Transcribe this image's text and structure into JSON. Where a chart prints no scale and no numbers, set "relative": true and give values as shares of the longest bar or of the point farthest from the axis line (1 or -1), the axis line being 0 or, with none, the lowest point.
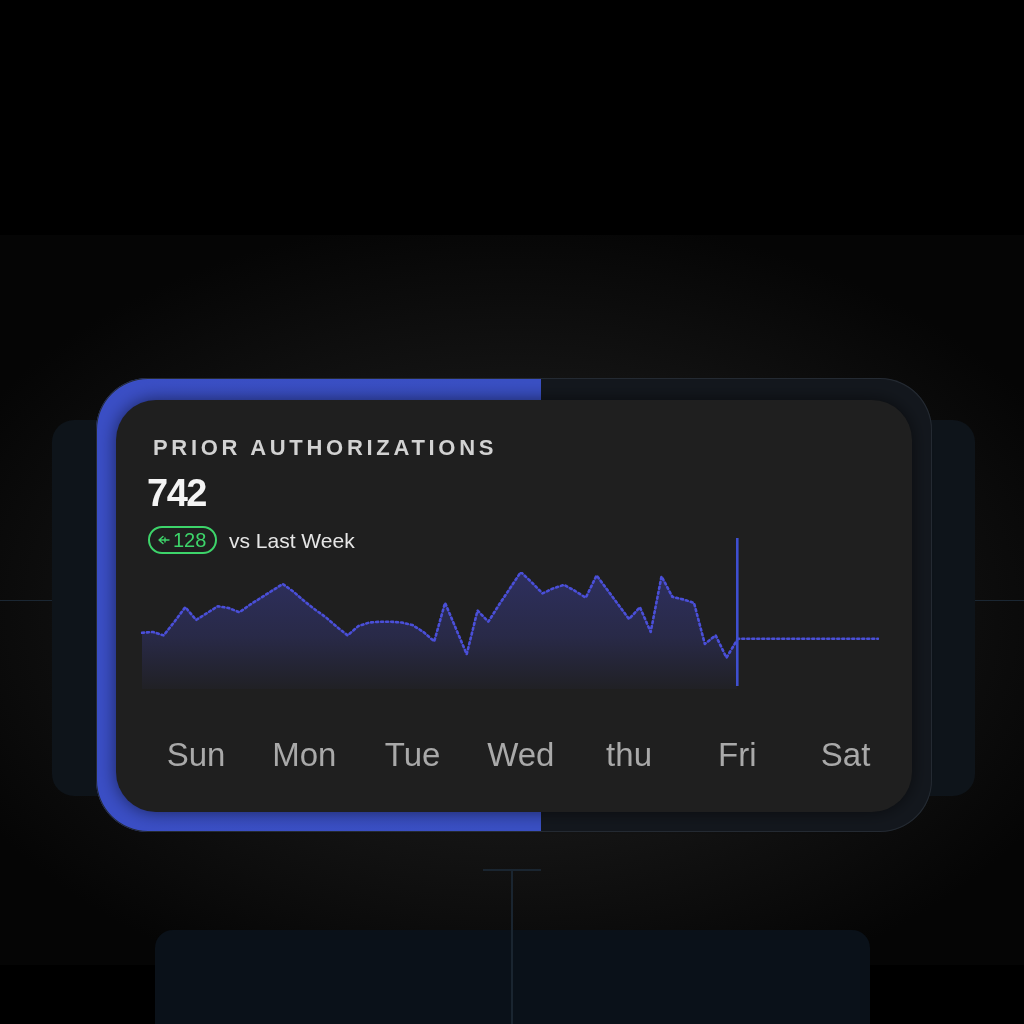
{
  "chart_data": {
    "type": "area",
    "title": "PRIOR AUTHORIZATIONS",
    "subtitle": "742",
    "annotations": [
      "128",
      "vs Last Week"
    ],
    "relative": true,
    "categories": [
      null,
      null,
      null,
      null,
      null,
      "Sun",
      null,
      null,
      null,
      null,
      null,
      null,
      null,
      null,
      null,
      "Mon",
      null,
      null,
      null,
      null,
      null,
      null,
      null,
      null,
      null,
      "Tue",
      null,
      null,
      null,
      null,
      null,
      null,
      null,
      null,
      null,
      "Wed",
      null,
      null,
      null,
      null,
      null,
      null,
      null,
      null,
      null,
      "thu",
      null,
      null,
      null,
      null,
      null,
      null,
      null,
      null,
      null,
      "Fri",
      null,
      null,
      null,
      null,
      null,
      null,
      null,
      null,
      null,
      "Sat",
      null,
      null,
      null
    ],
    "series": [
      {
        "color": "#4a4fd8",
        "values": [
          0.29,
          0.3,
          0.26,
          0.42,
          0.59,
          0.44,
          0.52,
          0.6,
          0.58,
          0.53,
          0.62,
          0.7,
          0.78,
          0.86,
          0.77,
          0.66,
          0.56,
          0.47,
          0.36,
          0.26,
          0.37,
          0.41,
          0.42,
          0.42,
          0.41,
          0.38,
          0.3,
          0.19,
          0.64,
          0.34,
          0.04,
          0.55,
          0.42,
          0.62,
          0.81,
          1.0,
          0.88,
          0.75,
          0.81,
          0.85,
          0.78,
          0.7,
          0.96,
          0.79,
          0.62,
          0.45,
          0.59,
          0.3,
          0.95,
          0.71,
          0.68,
          0.64,
          0.16,
          0.26,
          0,
          0.21,
          null,
          null,
          null,
          null,
          null,
          null,
          null,
          null,
          null,
          null,
          null,
          null,
          null
        ]
      },
      {
        "type": "line",
        "color": "#4a4fd8",
        "values": [
          null,
          null,
          null,
          null,
          null,
          null,
          null,
          null,
          null,
          null,
          null,
          null,
          null,
          null,
          null,
          null,
          null,
          null,
          null,
          null,
          null,
          null,
          null,
          null,
          null,
          null,
          null,
          null,
          null,
          null,
          null,
          null,
          null,
          null,
          null,
          null,
          null,
          null,
          null,
          null,
          null,
          null,
          null,
          null,
          null,
          null,
          null,
          null,
          null,
          null,
          null,
          null,
          null,
          null,
          null,
          0.22,
          0.22,
          0.22,
          0.22,
          0.22,
          0.22,
          0.22,
          0.22,
          0.22,
          0.22,
          0.22,
          0.22,
          0.22,
          0.22
        ]
      }
    ],
    "ref_lines": [
      {
        "axis": "x",
        "value": "Fri",
        "color": "#3f4fd0"
      }
    ],
    "line_style": "dotted",
    "grid": false,
    "legend": false,
    "tick_labels": "x"
  }
}
